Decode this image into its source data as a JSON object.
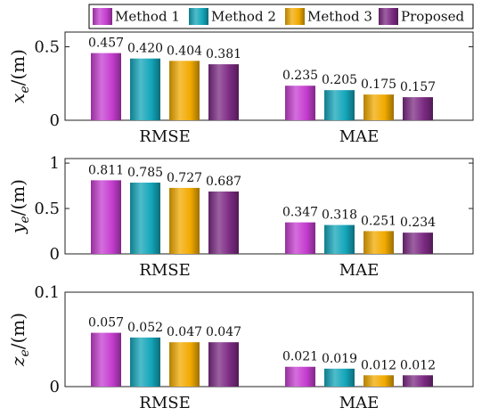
{
  "legend": {
    "entries": [
      {
        "name": "Method 1",
        "color": "#c53ed0"
      },
      {
        "name": "Method 2",
        "color": "#14a6ba"
      },
      {
        "name": "Method 3",
        "color": "#f1aa00"
      },
      {
        "name": "Proposed",
        "color": "#7c2b83"
      }
    ]
  },
  "chart_data": [
    {
      "type": "bar",
      "ylabel": "x_e/(m)",
      "ylabel_main": "x",
      "ylabel_sub": "e",
      "ylabel_rest": "/(m)",
      "categories": [
        "RMSE",
        "MAE"
      ],
      "ylim": [
        0,
        0.6
      ],
      "yticks": [
        0,
        0.5
      ],
      "ytick_labels": [
        "0",
        "0.5"
      ],
      "series": [
        {
          "name": "Method 1",
          "values": [
            0.457,
            0.235
          ],
          "labels": [
            "0.457",
            "0.235"
          ]
        },
        {
          "name": "Method 2",
          "values": [
            0.42,
            0.205
          ],
          "labels": [
            "0.420",
            "0.205"
          ]
        },
        {
          "name": "Method 3",
          "values": [
            0.404,
            0.175
          ],
          "labels": [
            "0.404",
            "0.175"
          ]
        },
        {
          "name": "Proposed",
          "values": [
            0.381,
            0.157
          ],
          "labels": [
            "0.381",
            "0.157"
          ]
        }
      ]
    },
    {
      "type": "bar",
      "ylabel": "y_e/(m)",
      "ylabel_main": "y",
      "ylabel_sub": "e",
      "ylabel_rest": "/(m)",
      "categories": [
        "RMSE",
        "MAE"
      ],
      "ylim": [
        0,
        1.05
      ],
      "yticks": [
        0,
        0.5,
        1
      ],
      "ytick_labels": [
        "0",
        "0.5",
        "1"
      ],
      "series": [
        {
          "name": "Method 1",
          "values": [
            0.811,
            0.347
          ],
          "labels": [
            "0.811",
            "0.347"
          ]
        },
        {
          "name": "Method 2",
          "values": [
            0.785,
            0.318
          ],
          "labels": [
            "0.785",
            "0.318"
          ]
        },
        {
          "name": "Method 3",
          "values": [
            0.727,
            0.251
          ],
          "labels": [
            "0.727",
            "0.251"
          ]
        },
        {
          "name": "Proposed",
          "values": [
            0.687,
            0.234
          ],
          "labels": [
            "0.687",
            "0.234"
          ]
        }
      ]
    },
    {
      "type": "bar",
      "ylabel": "z_e/(m)",
      "ylabel_main": "z",
      "ylabel_sub": "e",
      "ylabel_rest": "/(m)",
      "categories": [
        "RMSE",
        "MAE"
      ],
      "ylim": [
        0,
        0.1
      ],
      "yticks": [
        0,
        0.1
      ],
      "ytick_labels": [
        "0",
        "0.1"
      ],
      "series": [
        {
          "name": "Method 1",
          "values": [
            0.057,
            0.021
          ],
          "labels": [
            "0.057",
            "0.021"
          ]
        },
        {
          "name": "Method 2",
          "values": [
            0.052,
            0.019
          ],
          "labels": [
            "0.052",
            "0.019"
          ]
        },
        {
          "name": "Method 3",
          "values": [
            0.047,
            0.012
          ],
          "labels": [
            "0.047",
            "0.012"
          ]
        },
        {
          "name": "Proposed",
          "values": [
            0.047,
            0.012
          ],
          "labels": [
            "0.047",
            "0.012"
          ]
        }
      ]
    }
  ]
}
